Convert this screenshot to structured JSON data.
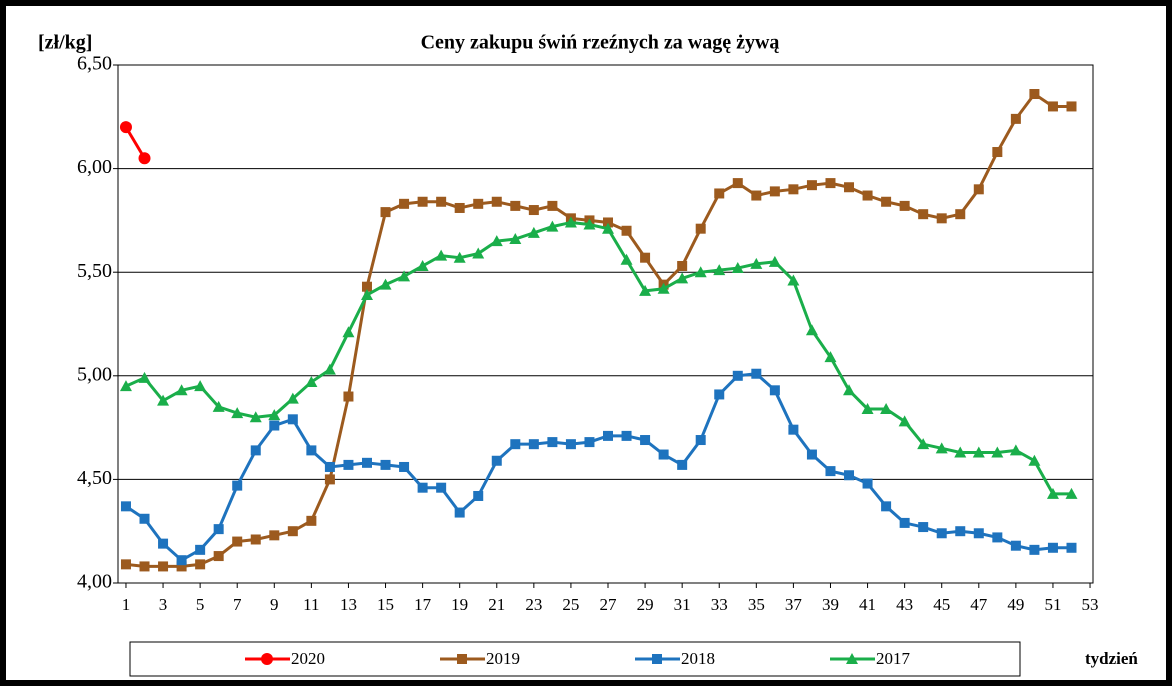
{
  "chart_data": {
    "type": "line",
    "title": "Ceny zakupu świń rzeźnych  za wagę żywą",
    "y_label": "[zł/kg]",
    "x_label": "tydzień",
    "x": [
      1,
      2,
      3,
      4,
      5,
      6,
      7,
      8,
      9,
      10,
      11,
      12,
      13,
      14,
      15,
      16,
      17,
      18,
      19,
      20,
      21,
      22,
      23,
      24,
      25,
      26,
      27,
      28,
      29,
      30,
      31,
      32,
      33,
      34,
      35,
      36,
      37,
      38,
      39,
      40,
      41,
      42,
      43,
      44,
      45,
      46,
      47,
      48,
      49,
      50,
      51,
      52
    ],
    "xlim": [
      0.57,
      53.16
    ],
    "xticks": [
      1,
      3,
      5,
      7,
      9,
      11,
      13,
      15,
      17,
      19,
      21,
      23,
      25,
      27,
      29,
      31,
      33,
      35,
      37,
      39,
      41,
      43,
      45,
      47,
      49,
      51,
      53
    ],
    "ylim": [
      4.0,
      6.5
    ],
    "yticks": [
      {
        "value": 4.0,
        "label": "4,00"
      },
      {
        "value": 4.5,
        "label": "4,50"
      },
      {
        "value": 5.0,
        "label": "5,00"
      },
      {
        "value": 5.5,
        "label": "5,50"
      },
      {
        "value": 6.0,
        "label": "6,00"
      },
      {
        "value": 6.5,
        "label": "6,50"
      }
    ],
    "grid": true,
    "legend": "bottom",
    "series": [
      {
        "name": "2020",
        "color": "#ff0000",
        "marker": "circle",
        "values": [
          6.2,
          6.05,
          null,
          null,
          null,
          null,
          null,
          null,
          null,
          null,
          null,
          null,
          null,
          null,
          null,
          null,
          null,
          null,
          null,
          null,
          null,
          null,
          null,
          null,
          null,
          null,
          null,
          null,
          null,
          null,
          null,
          null,
          null,
          null,
          null,
          null,
          null,
          null,
          null,
          null,
          null,
          null,
          null,
          null,
          null,
          null,
          null,
          null,
          null,
          null,
          null,
          null
        ]
      },
      {
        "name": "2019",
        "color": "#9c5a1e",
        "marker": "square",
        "values": [
          4.09,
          4.08,
          4.08,
          4.08,
          4.09,
          4.13,
          4.2,
          4.21,
          4.23,
          4.25,
          4.3,
          4.5,
          4.9,
          5.43,
          5.79,
          5.83,
          5.84,
          5.84,
          5.81,
          5.83,
          5.84,
          5.82,
          5.8,
          5.82,
          5.76,
          5.75,
          5.74,
          5.7,
          5.57,
          5.44,
          5.53,
          5.71,
          5.88,
          5.93,
          5.87,
          5.89,
          5.9,
          5.92,
          5.93,
          5.91,
          5.87,
          5.84,
          5.82,
          5.78,
          5.76,
          5.78,
          5.9,
          6.08,
          6.24,
          6.36,
          6.3,
          6.3
        ]
      },
      {
        "name": "2018",
        "color": "#1e73be",
        "marker": "square",
        "values": [
          4.37,
          4.31,
          4.19,
          4.11,
          4.16,
          4.26,
          4.47,
          4.64,
          4.76,
          4.79,
          4.64,
          4.56,
          4.57,
          4.58,
          4.57,
          4.56,
          4.46,
          4.46,
          4.34,
          4.42,
          4.59,
          4.67,
          4.67,
          4.68,
          4.67,
          4.68,
          4.71,
          4.71,
          4.69,
          4.62,
          4.57,
          4.69,
          4.91,
          5.0,
          5.01,
          4.93,
          4.74,
          4.62,
          4.54,
          4.52,
          4.48,
          4.37,
          4.29,
          4.27,
          4.24,
          4.25,
          4.24,
          4.22,
          4.18,
          4.16,
          4.17,
          4.17
        ]
      },
      {
        "name": "2017",
        "color": "#1aae4a",
        "marker": "triangle",
        "values": [
          4.95,
          4.99,
          4.88,
          4.93,
          4.95,
          4.85,
          4.82,
          4.8,
          4.81,
          4.89,
          4.97,
          5.03,
          5.21,
          5.39,
          5.44,
          5.48,
          5.53,
          5.58,
          5.57,
          5.59,
          5.65,
          5.66,
          5.69,
          5.72,
          5.74,
          5.73,
          5.71,
          5.56,
          5.41,
          5.42,
          5.47,
          5.5,
          5.51,
          5.52,
          5.54,
          5.55,
          5.46,
          5.22,
          5.09,
          4.93,
          4.84,
          4.84,
          4.78,
          4.67,
          4.65,
          4.63,
          4.63,
          4.63,
          4.64,
          4.59,
          4.43,
          4.43
        ]
      }
    ]
  }
}
